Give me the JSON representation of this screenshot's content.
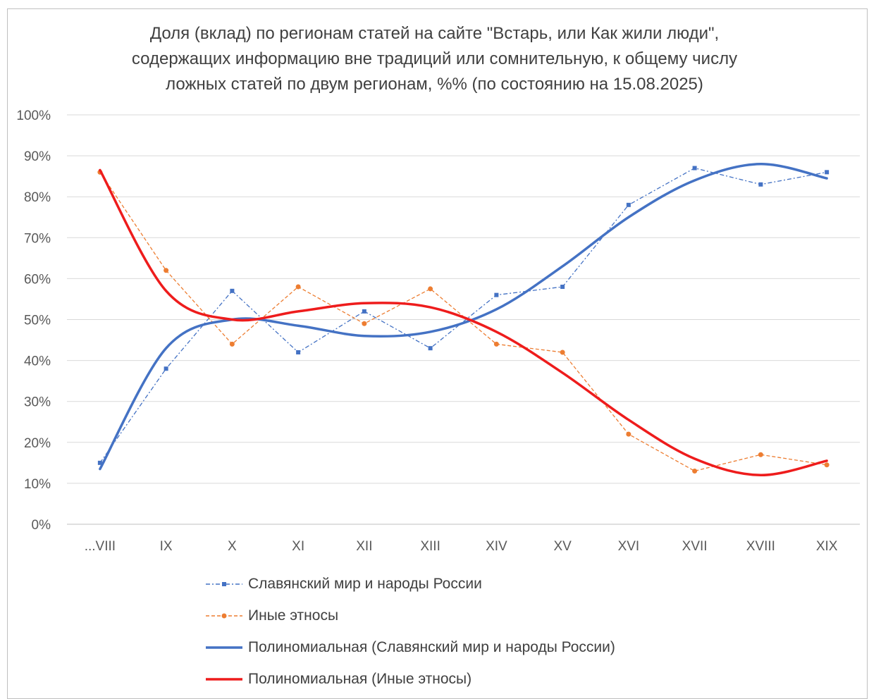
{
  "chart_data": {
    "type": "line",
    "title_lines": [
      "Доля (вклад) по регионам статей на сайте \"Встарь, или Как жили люди\",",
      "содержащих информацию вне традиций или сомнительную, к общему числу",
      "ложных статей по двум регионам,  %% (по состоянию на 15.08.2025)"
    ],
    "categories": [
      "...VIII",
      "IX",
      "X",
      "XI",
      "XII",
      "XIII",
      "XIV",
      "XV",
      "XVI",
      "XVII",
      "XVIII",
      "XIX"
    ],
    "y_ticks": [
      "0%",
      "10%",
      "20%",
      "30%",
      "40%",
      "50%",
      "60%",
      "70%",
      "80%",
      "90%",
      "100%"
    ],
    "ylim": [
      0,
      100
    ],
    "grid": "horizontal",
    "legend_position": "bottom",
    "series": [
      {
        "name": "Славянский мир и народы России",
        "style": "dash-dot-marker",
        "color": "#4472c4",
        "values": [
          15,
          38,
          57,
          42,
          52,
          43,
          56,
          58,
          78,
          87,
          83,
          86
        ]
      },
      {
        "name": "Иные этносы",
        "style": "dash-marker",
        "color": "#ed7d31",
        "values": [
          86,
          62,
          44,
          58,
          49,
          57.5,
          44,
          42,
          22,
          13,
          17,
          14.5
        ]
      },
      {
        "name": "Полиномиальная (Славянский мир и народы России)",
        "style": "trend",
        "color": "#4472c4",
        "values": [
          13.5,
          43,
          50,
          48.5,
          46,
          47,
          52.5,
          63,
          75,
          84,
          88,
          84.5
        ]
      },
      {
        "name": "Полиномиальная (Иные этносы)",
        "style": "trend",
        "color": "#ee1c1c",
        "values": [
          86.5,
          57,
          50,
          52,
          54,
          53,
          47,
          37,
          25.5,
          16,
          12,
          15.5
        ]
      }
    ]
  }
}
